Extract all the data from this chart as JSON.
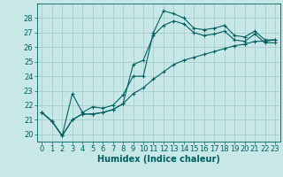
{
  "background_color": "#c8e8e8",
  "grid_color": "#a0c8c8",
  "line_color": "#006060",
  "xlabel": "Humidex (Indice chaleur)",
  "ylim": [
    19.5,
    29.0
  ],
  "xlim": [
    -0.5,
    23.5
  ],
  "yticks": [
    20,
    21,
    22,
    23,
    24,
    25,
    26,
    27,
    28
  ],
  "xticks": [
    0,
    1,
    2,
    3,
    4,
    5,
    6,
    7,
    8,
    9,
    10,
    11,
    12,
    13,
    14,
    15,
    16,
    17,
    18,
    19,
    20,
    21,
    22,
    23
  ],
  "line1_x": [
    0,
    1,
    2,
    3,
    4,
    5,
    6,
    7,
    8,
    9,
    10,
    11,
    12,
    13,
    14,
    15,
    16,
    17,
    18,
    19,
    20,
    21,
    22,
    23
  ],
  "line1_y": [
    21.5,
    20.9,
    19.9,
    22.8,
    21.5,
    21.9,
    21.8,
    22.0,
    22.7,
    24.0,
    24.0,
    27.0,
    28.5,
    28.3,
    28.0,
    27.3,
    27.2,
    27.3,
    27.5,
    26.8,
    26.7,
    27.1,
    26.5,
    26.5
  ],
  "line2_x": [
    0,
    1,
    2,
    3,
    4,
    5,
    6,
    7,
    8,
    9,
    10,
    11,
    12,
    13,
    14,
    15,
    16,
    17,
    18,
    19,
    20,
    21,
    22,
    23
  ],
  "line2_y": [
    21.5,
    20.9,
    19.9,
    21.0,
    21.4,
    21.4,
    21.5,
    21.7,
    22.1,
    22.8,
    23.2,
    23.8,
    24.3,
    24.8,
    25.1,
    25.3,
    25.5,
    25.7,
    25.9,
    26.1,
    26.2,
    26.4,
    26.4,
    26.5
  ],
  "line3_x": [
    0,
    1,
    2,
    3,
    4,
    5,
    6,
    7,
    8,
    9,
    10,
    11,
    12,
    13,
    14,
    15,
    16,
    17,
    18,
    19,
    20,
    21,
    22,
    23
  ],
  "line3_y": [
    21.5,
    20.9,
    19.9,
    21.0,
    21.4,
    21.4,
    21.5,
    21.7,
    22.1,
    24.8,
    25.1,
    26.8,
    27.5,
    27.8,
    27.6,
    27.0,
    26.8,
    26.9,
    27.1,
    26.5,
    26.4,
    26.9,
    26.3,
    26.3
  ],
  "marker": "+",
  "markersize": 3,
  "linewidth": 0.8,
  "xlabel_fontsize": 7,
  "tick_fontsize": 6,
  "figsize": [
    3.2,
    2.0
  ],
  "dpi": 100
}
